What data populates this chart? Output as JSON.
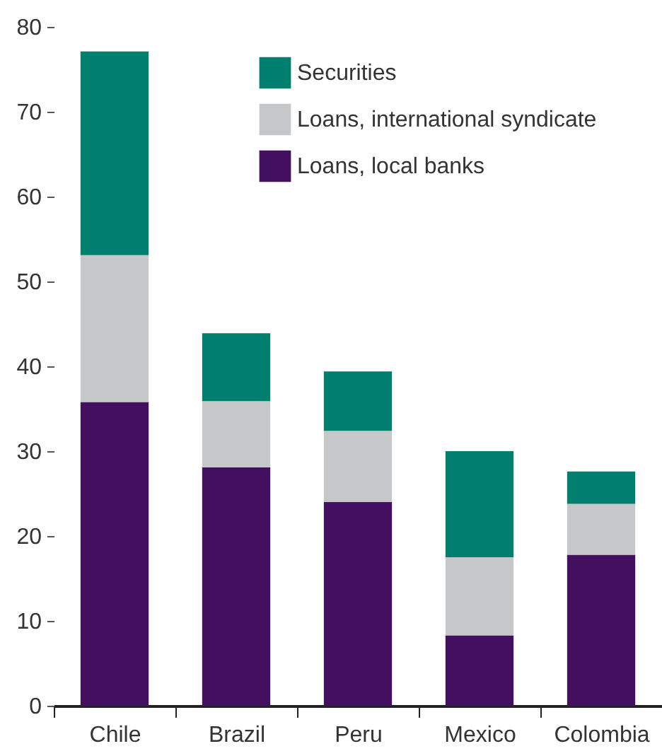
{
  "chart_data": {
    "type": "bar",
    "stacked": true,
    "categories": [
      "Chile",
      "Brazil",
      "Peru",
      "Mexico",
      "Colombia"
    ],
    "series": [
      {
        "name": "Loans, local banks",
        "color": "#43105f",
        "values": [
          35.8,
          28.1,
          24.0,
          8.3,
          17.8
        ]
      },
      {
        "name": "Loans, international syndicate",
        "color": "#c6c7c9",
        "values": [
          17.3,
          7.8,
          8.4,
          9.2,
          6.0
        ]
      },
      {
        "name": "Securities",
        "color": "#007e6e",
        "values": [
          24.0,
          8.0,
          7.0,
          12.5,
          3.8
        ]
      }
    ],
    "ylim": [
      0,
      80
    ],
    "yticks": [
      0,
      10,
      20,
      30,
      40,
      50,
      60,
      70,
      80
    ],
    "grid": false,
    "legend": "top right"
  }
}
